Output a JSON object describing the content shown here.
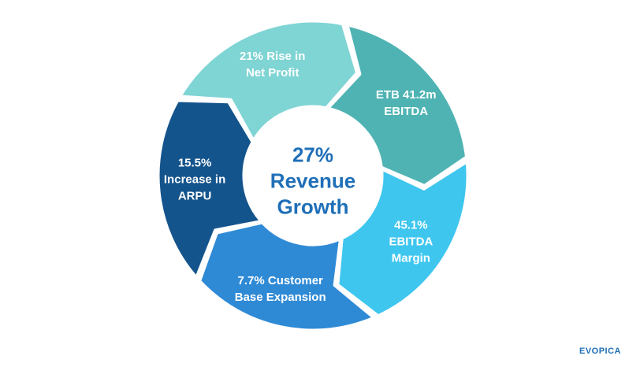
{
  "diagram": {
    "center": {
      "text": "27%\nRevenue\nGrowth",
      "color": "#1f6fb8"
    },
    "segments": [
      {
        "id": "net-profit",
        "text": "21% Rise in\nNet Profit",
        "color": "#7fd4d4"
      },
      {
        "id": "ebitda",
        "text": "ETB 41.2m\nEBITDA",
        "color": "#4fb3b3"
      },
      {
        "id": "ebitda-margin",
        "text": "45.1%\nEBITDA\nMargin",
        "color": "#3ec6ef"
      },
      {
        "id": "customer-base",
        "text": "7.7% Customer\nBase Expansion",
        "color": "#2f8ad6"
      },
      {
        "id": "arpu",
        "text": "15.5%\nIncrease in\nARPU",
        "color": "#14548c"
      }
    ]
  },
  "brand": {
    "text": "EVOPICA",
    "color": "#1f6fb8"
  }
}
